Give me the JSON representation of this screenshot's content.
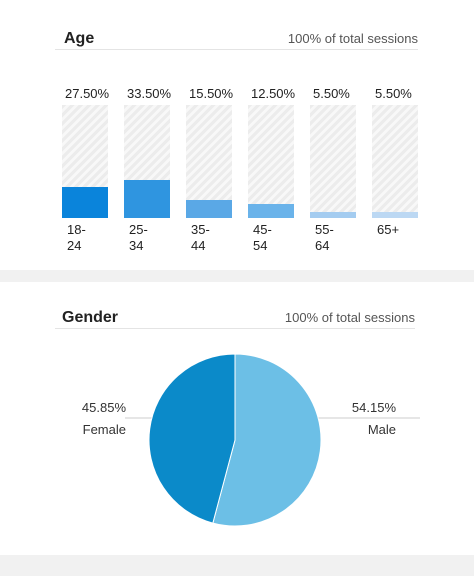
{
  "chart_data": [
    {
      "type": "bar",
      "title": "Age",
      "subtitle": "100% of total sessions",
      "categories": [
        "18-24",
        "25-34",
        "35-44",
        "45-54",
        "55-64",
        "65+"
      ],
      "values": [
        27.5,
        33.5,
        15.5,
        12.5,
        5.5,
        5.5
      ],
      "value_labels": [
        "27.50%",
        "33.50%",
        "15.50%",
        "12.50%",
        "5.50%",
        "5.50%"
      ],
      "colors": [
        "#0a84db",
        "#2f95e0",
        "#5aa8e6",
        "#6ab3ea",
        "#a4ccf0",
        "#bcd8f3"
      ],
      "ylim": [
        0,
        100
      ]
    },
    {
      "type": "pie",
      "title": "Gender",
      "subtitle": "100% of total sessions",
      "categories": [
        "Female",
        "Male"
      ],
      "values": [
        45.85,
        54.15
      ],
      "value_labels": [
        "45.85%",
        "54.15%"
      ],
      "colors": [
        "#0b8ac9",
        "#6cbfe6"
      ]
    }
  ]
}
